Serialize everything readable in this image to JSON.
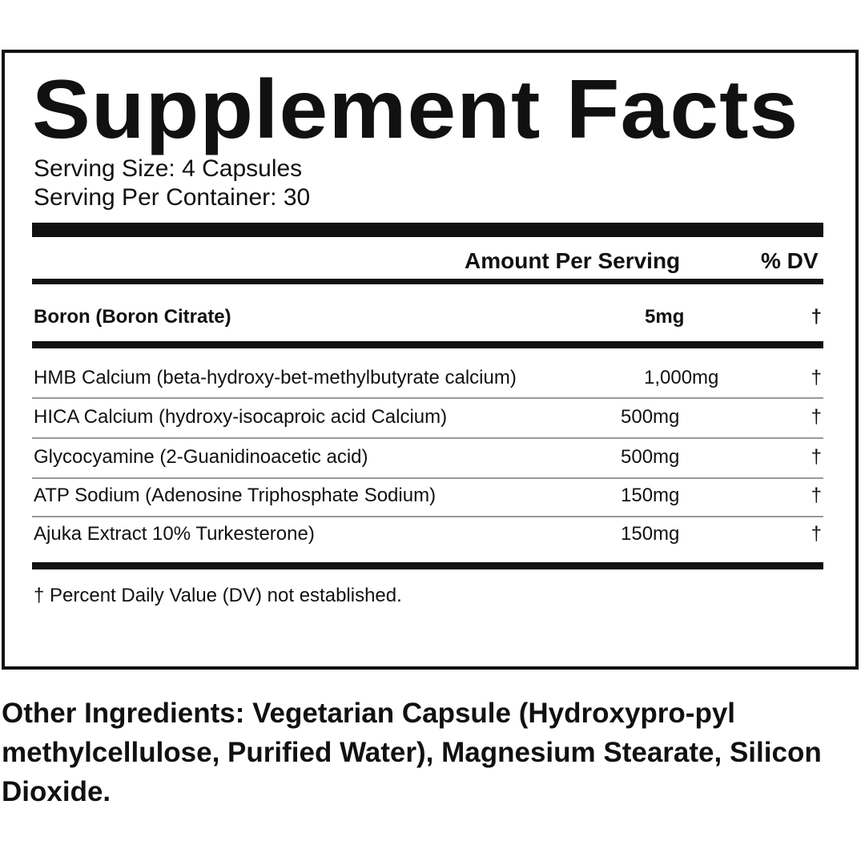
{
  "title": "Supplement Facts",
  "serving_size": "Serving Size: 4 Capsules",
  "servings_per_container": "Serving Per Container: 30",
  "header": {
    "amount": "Amount Per Serving",
    "dv": "% DV"
  },
  "featured": {
    "name": "Boron (Boron Citrate)",
    "amount": "5mg",
    "dv": "†"
  },
  "rows": [
    {
      "name": "HMB Calcium (beta-hydroxy-bet-methylbutyrate calcium)",
      "amount": "1,000mg",
      "dv": "†"
    },
    {
      "name": "HICA Calcium (hydroxy-isocaproic acid Calcium)",
      "amount": "500mg",
      "dv": "†"
    },
    {
      "name": "Glycocyamine (2-Guanidinoacetic acid)",
      "amount": "500mg",
      "dv": "†"
    },
    {
      "name": "ATP Sodium (Adenosine Triphosphate Sodium)",
      "amount": "150mg",
      "dv": "†"
    },
    {
      "name": "Ajuka Extract 10% Turkesterone)",
      "amount": "150mg",
      "dv": "†"
    }
  ],
  "footnote": "† Percent Daily Value (DV) not established.",
  "other_ingredients": "Other Ingredients:  Vegetarian Capsule (Hydroxypro-pyl methylcellulose, Purified Water), Magnesium Stearate, Silicon Dioxide."
}
